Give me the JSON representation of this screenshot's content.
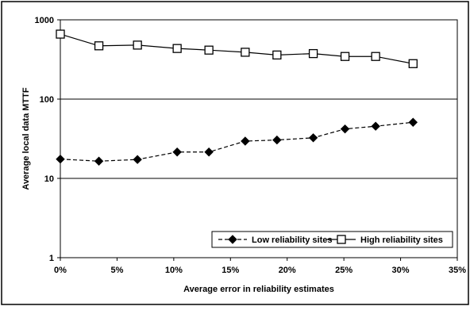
{
  "chart_data": {
    "type": "line",
    "title": "",
    "xlabel": "Average error in reliability estimates",
    "ylabel": "Average local data MTTF",
    "x_ticks": [
      "0%",
      "5%",
      "10%",
      "15%",
      "20%",
      "25%",
      "30%",
      "35%"
    ],
    "y_ticks": [
      "1",
      "10",
      "100",
      "1000"
    ],
    "xlim": [
      0,
      35
    ],
    "ylim": [
      1,
      1000
    ],
    "y_scale": "log",
    "grid": "horizontal major",
    "legend_position": "bottom-right",
    "series": [
      {
        "name": "Low reliability sites",
        "style": "dashed",
        "marker": "filled-diamond",
        "color": "#000000",
        "x": [
          0,
          3.4,
          6.8,
          10.3,
          13.1,
          16.3,
          19.1,
          22.3,
          25.1,
          27.8,
          31.1
        ],
        "y": [
          17.5,
          16.5,
          17.3,
          21.5,
          21.5,
          29.5,
          30.5,
          32.5,
          42,
          45.5,
          51
        ]
      },
      {
        "name": "High reliability sites",
        "style": "solid",
        "marker": "open-square",
        "color": "#000000",
        "x": [
          0,
          3.4,
          6.8,
          10.3,
          13.1,
          16.3,
          19.1,
          22.3,
          25.1,
          27.8,
          31.1
        ],
        "y": [
          660,
          470,
          480,
          435,
          415,
          390,
          360,
          375,
          345,
          345,
          280
        ]
      }
    ]
  }
}
